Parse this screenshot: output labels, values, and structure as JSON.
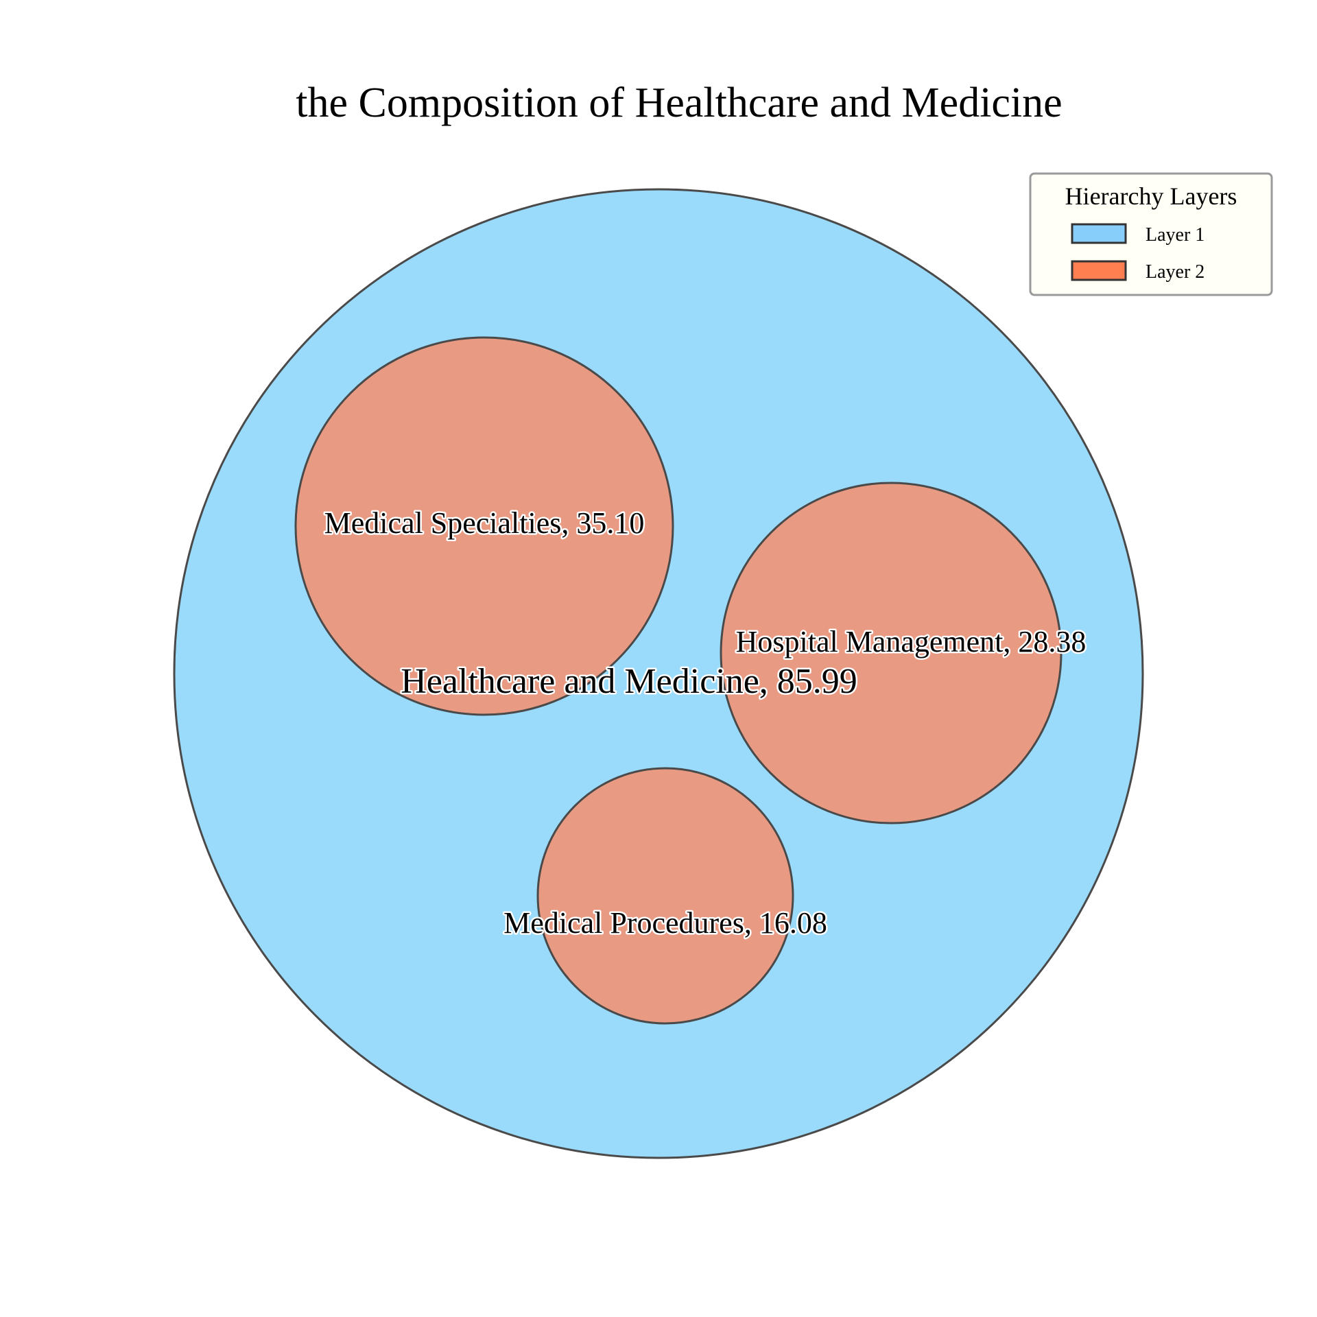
{
  "chart_data": {
    "type": "circle-packing",
    "title": "the Composition of Healthcare and Medicine",
    "root": {
      "name": "Healthcare and Medicine",
      "value": 85.99,
      "label": "Healthcare and Medicine, 85.99",
      "layer": 1,
      "children": [
        {
          "name": "Medical Specialties",
          "value": 35.1,
          "label": "Medical Specialties, 35.10",
          "layer": 2
        },
        {
          "name": "Hospital Management",
          "value": 28.38,
          "label": "Hospital Management, 28.38",
          "layer": 2
        },
        {
          "name": "Medical Procedures",
          "value": 16.08,
          "label": "Medical Procedures, 16.08",
          "layer": 2
        }
      ]
    },
    "legend": {
      "title": "Hierarchy Layers",
      "placement": "top-right",
      "entries": [
        {
          "label": "Layer 1",
          "color": "#87CEFA"
        },
        {
          "label": "Layer 2",
          "color": "#FF7F50"
        }
      ]
    },
    "colors": {
      "layer1_fill": "#9ADBFB",
      "layer2_fill": "#E99A83",
      "edge": "#4a4a4a"
    }
  }
}
